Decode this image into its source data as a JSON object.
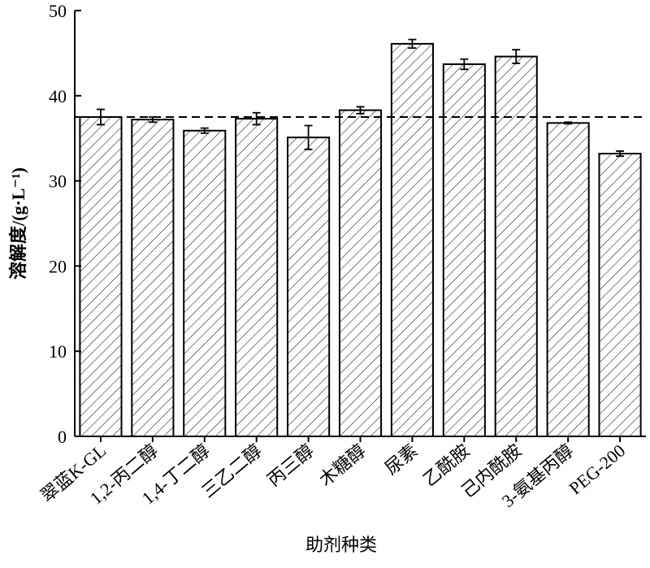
{
  "chart_data": {
    "type": "bar",
    "y_label": "溶解度/(g·L⁻¹)",
    "x_label": "助剂种类",
    "categories": [
      "翠蓝K-GL",
      "1,2-丙二醇",
      "1,4-丁二醇",
      "三乙二醇",
      "丙三醇",
      "木糖醇",
      "尿素",
      "乙酰胺",
      "己内酰胺",
      "3-氨基丙醇",
      "PEG-200"
    ],
    "values": [
      37.5,
      37.2,
      35.9,
      37.3,
      35.1,
      38.3,
      46.1,
      43.7,
      44.6,
      36.8,
      33.2
    ],
    "errors": [
      0.9,
      0.3,
      0.3,
      0.7,
      1.4,
      0.4,
      0.5,
      0.6,
      0.8,
      0.1,
      0.3
    ],
    "reference_line": 37.5,
    "color": "#000000",
    "ylim": [
      0,
      50
    ],
    "yticks": [
      0,
      10,
      20,
      30,
      40,
      50
    ]
  }
}
